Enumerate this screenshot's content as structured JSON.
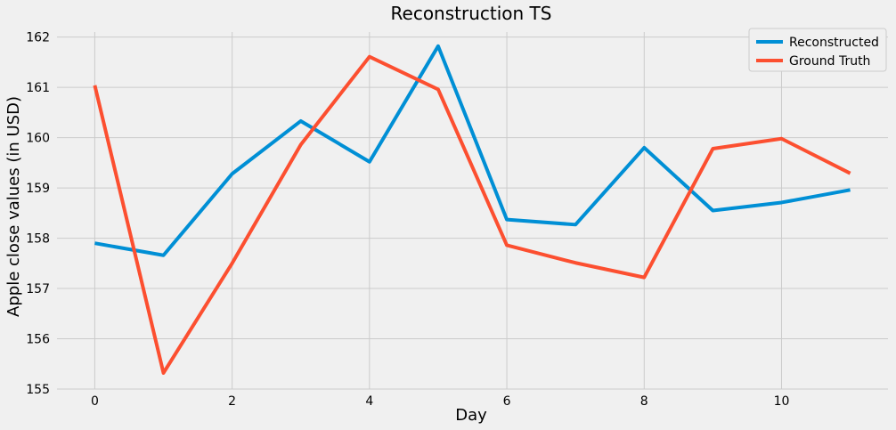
{
  "chart_data": {
    "type": "line",
    "title": "Reconstruction TS",
    "xlabel": "Day",
    "ylabel": "Apple close values (in USD)",
    "x": [
      0,
      1,
      2,
      3,
      4,
      5,
      6,
      7,
      8,
      9,
      10,
      11
    ],
    "xlim": [
      -0.55,
      11.55
    ],
    "ylim": [
      155,
      162.1
    ],
    "xticks": [
      0,
      2,
      4,
      6,
      8,
      10
    ],
    "yticks": [
      155,
      156,
      157,
      158,
      159,
      160,
      161,
      162
    ],
    "grid": true,
    "legend_position": "top-right",
    "background_color": "#f0f0f0",
    "grid_color": "#cbcbcb",
    "series": [
      {
        "name": "Reconstructed",
        "color": "#008fd5",
        "values": [
          157.9,
          157.66,
          159.28,
          160.33,
          159.52,
          161.82,
          158.37,
          158.27,
          159.8,
          158.55,
          158.71,
          158.96
        ]
      },
      {
        "name": "Ground Truth",
        "color": "#fc4f30",
        "values": [
          161.04,
          155.32,
          157.5,
          159.86,
          161.61,
          160.96,
          157.86,
          157.51,
          157.22,
          159.78,
          159.98,
          159.29
        ]
      }
    ]
  }
}
